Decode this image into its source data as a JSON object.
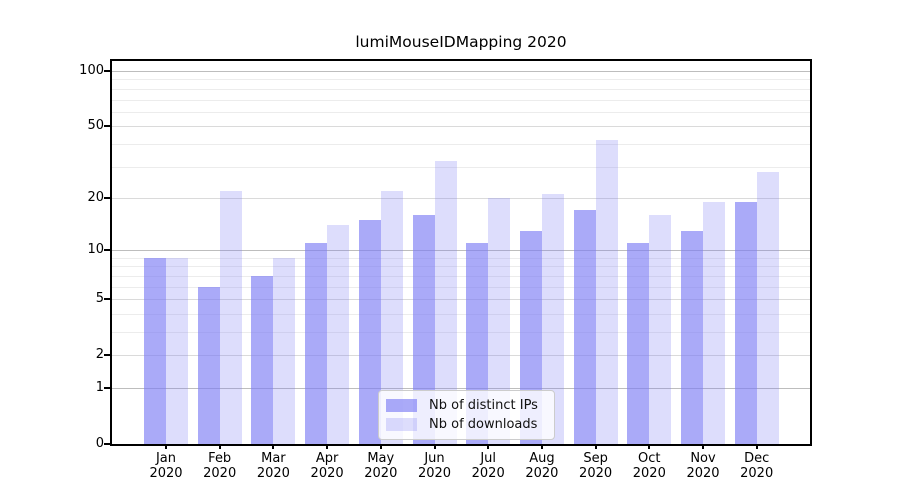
{
  "chart_data": {
    "type": "bar",
    "title": "lumiMouseIDMapping 2020",
    "categories": [
      "Jan",
      "Feb",
      "Mar",
      "Apr",
      "May",
      "Jun",
      "Jul",
      "Aug",
      "Sep",
      "Oct",
      "Nov",
      "Dec"
    ],
    "category_year": "2020",
    "series": [
      {
        "name": "Nb of distinct IPs",
        "values": [
          9,
          6,
          7,
          11,
          15,
          16,
          11,
          13,
          17,
          11,
          13,
          19
        ],
        "color": "#7c7cf5",
        "alpha": 0.65
      },
      {
        "name": "Nb of downloads",
        "values": [
          9,
          22,
          9,
          14,
          22,
          32,
          20,
          21,
          42,
          16,
          19,
          28
        ],
        "color": "#7c7cf5",
        "alpha": 0.26
      }
    ],
    "xlabel": "",
    "ylabel": "",
    "y_scale": "log10(value+1)",
    "ylim": [
      0,
      113
    ],
    "y_ticks_labeled": [
      0,
      1,
      2,
      5,
      10,
      20,
      50,
      100
    ],
    "y_tick_decades": [
      1,
      10,
      100
    ],
    "y_gridline_values": [
      1,
      2,
      3,
      4,
      5,
      6,
      7,
      8,
      9,
      10,
      20,
      30,
      40,
      50,
      60,
      70,
      80,
      90,
      100
    ],
    "grid": true,
    "legend_position": "lower-center"
  }
}
